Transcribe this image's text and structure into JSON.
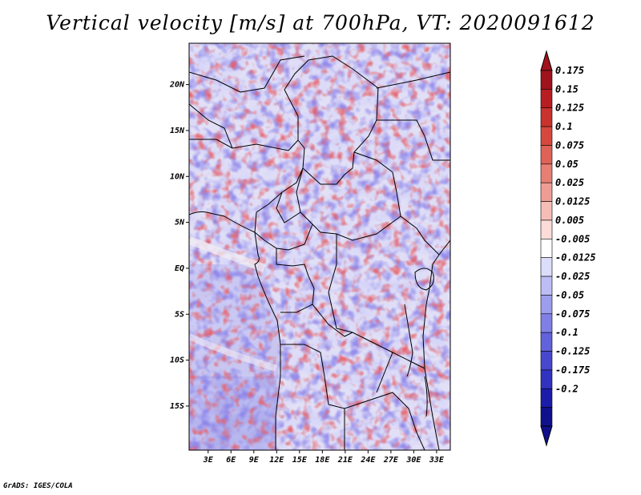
{
  "title": "Vertical velocity [m/s] at 700hPa, VT: 2020091612",
  "credit": "GrADS: IGES/COLA",
  "lat_labels": [
    {
      "label": "20N",
      "lat": 20
    },
    {
      "label": "15N",
      "lat": 15
    },
    {
      "label": "10N",
      "lat": 10
    },
    {
      "label": "5N",
      "lat": 5
    },
    {
      "label": "EQ",
      "lat": 0
    },
    {
      "label": "5S",
      "lat": -5
    },
    {
      "label": "10S",
      "lat": -10
    },
    {
      "label": "15S",
      "lat": -15
    }
  ],
  "lon_labels": [
    {
      "label": "3E",
      "lon": 3
    },
    {
      "label": "6E",
      "lon": 6
    },
    {
      "label": "9E",
      "lon": 9
    },
    {
      "label": "12E",
      "lon": 12
    },
    {
      "label": "15E",
      "lon": 15
    },
    {
      "label": "18E",
      "lon": 18
    },
    {
      "label": "21E",
      "lon": 21
    },
    {
      "label": "24E",
      "lon": 24
    },
    {
      "label": "27E",
      "lon": 27
    },
    {
      "label": "30E",
      "lon": 30
    },
    {
      "label": "33E",
      "lon": 33
    }
  ],
  "extent": {
    "lon_min": 0.5,
    "lon_max": 34.8,
    "lat_min": -19.8,
    "lat_max": 24.5
  },
  "colorbar": {
    "labels": [
      "0.175",
      "0.15",
      "0.125",
      "0.1",
      "0.075",
      "0.05",
      "0.025",
      "0.0125",
      "0.005",
      "-0.005",
      "-0.0125",
      "-0.025",
      "-0.05",
      "-0.075",
      "-0.1",
      "-0.125",
      "-0.175",
      "-0.2"
    ],
    "colors": [
      "#a0121c",
      "#b81d22",
      "#c9322d",
      "#d6483e",
      "#df6256",
      "#e77f74",
      "#ef9d94",
      "#f6bdb6",
      "#fbdcd8",
      "#ffffff",
      "#dcdcfb",
      "#bdbdf5",
      "#9d9dee",
      "#7f7fe6",
      "#6262dc",
      "#4848cf",
      "#3232c0",
      "#1c1caa",
      "#10108c"
    ]
  },
  "colors": {
    "positive": "#c0282c",
    "negative": "#3a3ad0",
    "background": "#ffffff"
  }
}
